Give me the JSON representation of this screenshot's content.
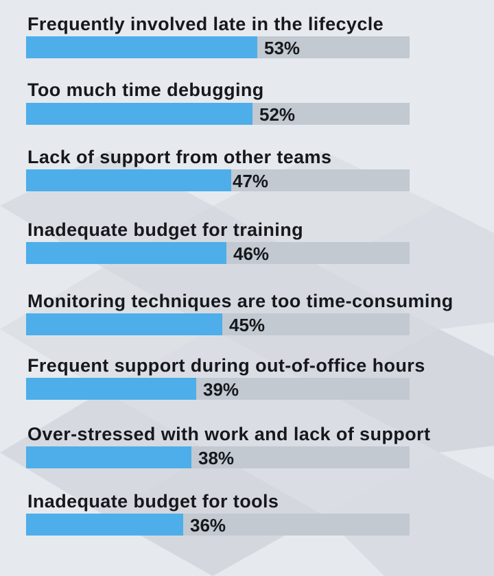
{
  "chart_data": {
    "type": "bar",
    "orientation": "horizontal",
    "categories": [
      "Frequently involved late in the lifecycle",
      "Too much time debugging",
      "Lack of support from other teams",
      "Inadequate budget for training",
      "Monitoring techniques are too time-consuming",
      "Frequent support during out-of-office hours",
      "Over-stressed with work and lack of support",
      "Inadequate budget for tools"
    ],
    "values": [
      53,
      52,
      47,
      46,
      45,
      39,
      38,
      36
    ],
    "value_labels": [
      "53%",
      "52%",
      "47%",
      "46%",
      "45%",
      "39%",
      "38%",
      "36%"
    ],
    "xlim": [
      0,
      100
    ],
    "grid": false,
    "legend": "none",
    "colors": {
      "bar": "#4daee9",
      "track": "#c2c9d0",
      "text": "#16181c",
      "background": "#e6e9ee"
    }
  }
}
